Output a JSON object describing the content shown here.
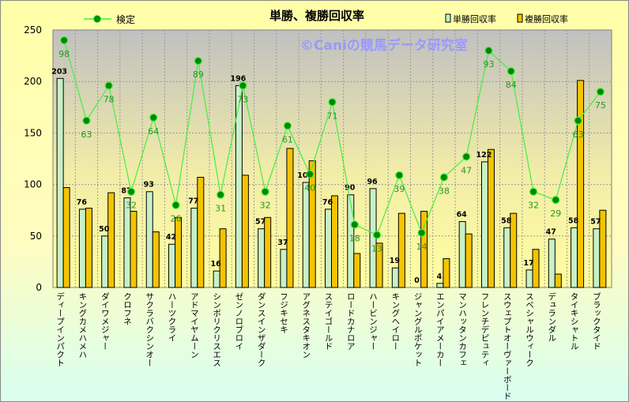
{
  "chart_data": {
    "type": "bar",
    "title": "単勝、複勝回収率",
    "watermark": "©Caniの競馬データ研究室",
    "ylim": [
      0,
      250
    ],
    "yticks": [
      0,
      50,
      100,
      150,
      200,
      250
    ],
    "grid": true,
    "legend": {
      "line": "検定",
      "bar1": "単勝回収率",
      "bar2": "複勝回収率"
    },
    "categories": [
      "ディープインパクト",
      "キングカメハメハ",
      "ダイワメジャー",
      "クロフネ",
      "サクラバクシンオー",
      "ハーツクライ",
      "アドマイヤムーン",
      "シンボリクリスエス",
      "ゼンノロブロイ",
      "ダンスインザダーク",
      "フジキセキ",
      "アグネスタキオン",
      "ステイゴールド",
      "ロードカナロア",
      "ハービンジャー",
      "キングヘイロー",
      "ジャングルポケット",
      "エンパイアメーカー",
      "マンハッタンカフェ",
      "フレンチデピュティ",
      "スウェプトオーヴァーボード",
      "スペシャルウィーク",
      "デュランダル",
      "タイキシャトル",
      "ブラックタイド"
    ],
    "series": [
      {
        "name": "単勝回収率",
        "color": "#c8f0c8",
        "values": [
          203,
          76,
          50,
          87,
          93,
          42,
          77,
          16,
          196,
          57,
          37,
          102,
          76,
          90,
          96,
          19,
          0,
          4,
          64,
          122,
          58,
          17,
          47,
          58,
          57
        ]
      },
      {
        "name": "複勝回収率",
        "color": "#f5c400",
        "values": [
          97,
          77,
          92,
          74,
          54,
          68,
          107,
          57,
          109,
          68,
          135,
          123,
          89,
          33,
          43,
          72,
          74,
          28,
          52,
          134,
          72,
          37,
          13,
          201,
          75
        ]
      },
      {
        "name": "検定",
        "color": "#44ee44",
        "labels": [
          98,
          63,
          78,
          32,
          64,
          26,
          89,
          31,
          73,
          32,
          61,
          40,
          71,
          18,
          13,
          39,
          14,
          38,
          47,
          93,
          84,
          32,
          29,
          63,
          75
        ],
        "plotted": [
          240,
          162,
          196,
          93,
          165,
          80,
          220,
          90,
          196,
          93,
          157,
          110,
          180,
          61,
          51,
          109,
          53,
          107,
          127,
          230,
          210,
          93,
          85,
          162,
          190
        ]
      }
    ]
  }
}
